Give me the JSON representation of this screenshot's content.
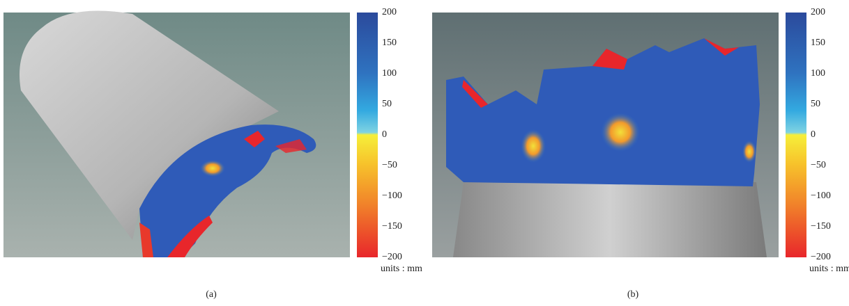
{
  "panels": [
    {
      "label": "(a)",
      "colorbar": {
        "ticks": [
          "200",
          "150",
          "100",
          "50",
          "0",
          "−50",
          "−100",
          "−150",
          "−200"
        ],
        "units": "units : mm"
      }
    },
    {
      "label": "(b)",
      "colorbar": {
        "ticks": [
          "200",
          "150",
          "100",
          "50",
          "0",
          "−50",
          "−100",
          "−150",
          "−200"
        ],
        "units": "units : mm"
      }
    }
  ]
}
